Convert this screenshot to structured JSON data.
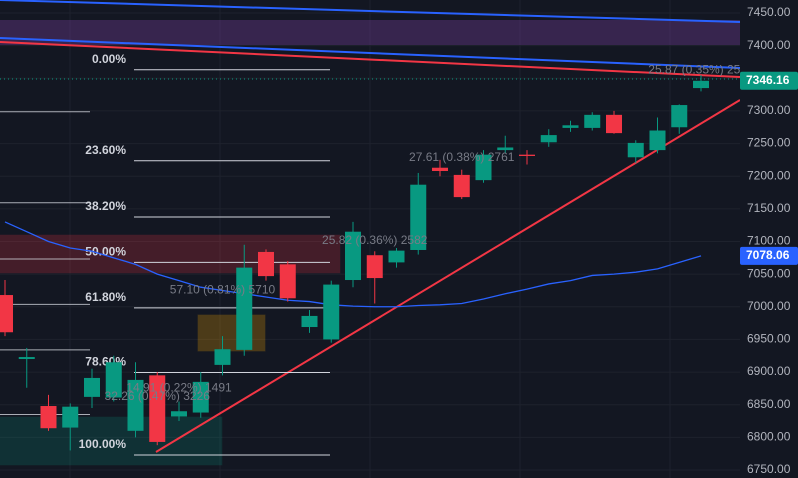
{
  "chart_data": {
    "type": "candlestick",
    "categories": [
      null,
      null,
      null,
      null,
      null,
      null,
      null,
      null,
      null,
      null,
      null,
      null,
      null,
      null,
      null,
      null,
      null,
      null,
      null,
      null,
      null,
      null,
      null,
      null,
      null,
      null,
      null,
      null,
      null,
      null,
      null,
      null,
      null
    ],
    "open": [
      7018,
      6920,
      6848,
      6815,
      6862,
      6861,
      6810,
      6895,
      6832,
      6838,
      6911,
      6934,
      7084,
      7065,
      6969,
      6950,
      7041,
      7079,
      7068,
      7087,
      7213,
      7202,
      7194,
      7240,
      7233,
      7252,
      7274,
      7274,
      7294,
      7229,
      7240,
      7275,
      7335
    ],
    "high": [
      7041,
      6937,
      6865,
      6852,
      6905,
      6925,
      6915,
      6900,
      6855,
      6900,
      6955,
      7095,
      7088,
      7070,
      6995,
      7040,
      7130,
      7085,
      7090,
      7205,
      7225,
      7210,
      7240,
      7262,
      7240,
      7272,
      7285,
      7298,
      7300,
      7255,
      7290,
      7310,
      7355
    ],
    "low": [
      6955,
      6876,
      6810,
      6780,
      6845,
      6855,
      6800,
      6788,
      6825,
      6830,
      6895,
      6925,
      7040,
      7008,
      6960,
      6945,
      7030,
      7005,
      7060,
      7080,
      7200,
      7165,
      7190,
      7235,
      7218,
      7245,
      7268,
      7270,
      7265,
      7220,
      7235,
      7265,
      7330
    ],
    "close": [
      6961,
      6923,
      6814,
      6847,
      6891,
      6915,
      6888,
      6793,
      6840,
      6885,
      6935,
      7060,
      7047,
      7013,
      6986,
      7034,
      7115,
      7044,
      7086,
      7187,
      7208,
      7168,
      7233,
      7244,
      7231,
      7263,
      7278,
      7294,
      7266,
      7251,
      7270,
      7309,
      7346.16
    ],
    "up_color": "#089981",
    "down_color": "#f23645",
    "ma": {
      "color": "#2962ff",
      "values": [
        7130,
        7115,
        7100,
        7090,
        7085,
        7075,
        7065,
        7050,
        7040,
        7030,
        7025,
        7020,
        7015,
        7010,
        7008,
        7003,
        7001,
        7000,
        7000,
        7002,
        7003,
        7005,
        7012,
        7020,
        7027,
        7035,
        7040,
        7048,
        7050,
        7053,
        7058,
        7068,
        7078.06
      ]
    },
    "ylim": [
      6750,
      7450
    ],
    "yticks": [
      {
        "value": 6750,
        "label": "6750.00"
      },
      {
        "value": 6800,
        "label": "6800.00"
      },
      {
        "value": 6850,
        "label": "6850.00"
      },
      {
        "value": 6900,
        "label": "6900.00"
      },
      {
        "value": 6950,
        "label": "6950.00"
      },
      {
        "value": 7000,
        "label": "7000.00"
      },
      {
        "value": 7050,
        "label": "7050.00"
      },
      {
        "value": 7100,
        "label": "7100.00"
      },
      {
        "value": 7150,
        "label": "7150.00"
      },
      {
        "value": 7200,
        "label": "7200.00"
      },
      {
        "value": 7250,
        "label": "7250.00"
      },
      {
        "value": 7300,
        "label": "7300.00"
      },
      {
        "value": 7350,
        "label": "7350.00"
      },
      {
        "value": 7400,
        "label": "7400.00"
      },
      {
        "value": 7450,
        "label": "7450.00"
      }
    ],
    "price_labels": [
      {
        "value": 7346.16,
        "label": "7346.16",
        "color": "#089981"
      },
      {
        "value": 7078.06,
        "label": "7078.06",
        "color": "#2962ff"
      }
    ],
    "fib_range": [
      7363,
      6773
    ],
    "fib_levels": [
      {
        "value": 0,
        "label": "0.00%"
      },
      {
        "value": 23.6,
        "label": "23.60%"
      },
      {
        "value": 38.2,
        "label": "38.20%"
      },
      {
        "value": 50,
        "label": "50.00%"
      },
      {
        "value": 61.8,
        "label": "61.80%"
      },
      {
        "value": 78.6,
        "label": "78.60%"
      },
      {
        "value": 100,
        "label": "100.00%"
      }
    ],
    "annotations": [
      {
        "text": "25.87 (0.35%) 2587",
        "index": 32,
        "value": 7362
      },
      {
        "text": "27.61 (0.38%) 2761",
        "index": 21,
        "value": 7228
      },
      {
        "text": "25.82 (0.36%) 2582",
        "index": 17,
        "value": 7101
      },
      {
        "text": "57.10 (0.81%) 5710",
        "index": 10,
        "value": 7025
      },
      {
        "text": "14.91 (0.22%) 1491",
        "index": 8,
        "value": 6875
      },
      {
        "text": "32.26 (0.47%) 3226",
        "index": 7,
        "value": 6862
      }
    ]
  }
}
